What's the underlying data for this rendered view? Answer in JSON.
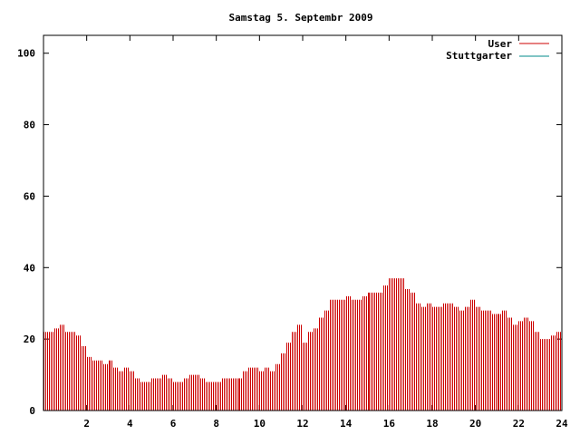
{
  "chart_data": {
    "type": "bar",
    "title": "Samstag 5. Septembr 2009",
    "xlim": [
      0,
      24
    ],
    "ylim": [
      0,
      105
    ],
    "x_ticks": [
      2,
      4,
      6,
      8,
      10,
      12,
      14,
      16,
      18,
      20,
      22,
      24
    ],
    "x_tick_labels": [
      "2",
      "4",
      "6",
      "8",
      "10",
      "12",
      "14",
      "16",
      "18",
      "20",
      "22",
      "24"
    ],
    "y_ticks": [
      0,
      20,
      40,
      60,
      80,
      100
    ],
    "y_tick_labels": [
      "0",
      "20",
      "40",
      "60",
      "80",
      "100"
    ],
    "grid": false,
    "legend_position": "top-right",
    "series": [
      {
        "name": "User",
        "color": "#cc0000",
        "points": [
          {
            "x": 0.0,
            "y": 22
          },
          {
            "x": 0.25,
            "y": 22
          },
          {
            "x": 0.5,
            "y": 23
          },
          {
            "x": 0.75,
            "y": 24
          },
          {
            "x": 1.0,
            "y": 22
          },
          {
            "x": 1.25,
            "y": 22
          },
          {
            "x": 1.5,
            "y": 21
          },
          {
            "x": 1.75,
            "y": 18
          },
          {
            "x": 2.0,
            "y": 15
          },
          {
            "x": 2.25,
            "y": 14
          },
          {
            "x": 2.5,
            "y": 14
          },
          {
            "x": 2.75,
            "y": 13
          },
          {
            "x": 3.0,
            "y": 14
          },
          {
            "x": 3.25,
            "y": 12
          },
          {
            "x": 3.5,
            "y": 11
          },
          {
            "x": 3.75,
            "y": 12
          },
          {
            "x": 4.0,
            "y": 11
          },
          {
            "x": 4.25,
            "y": 9
          },
          {
            "x": 4.5,
            "y": 8
          },
          {
            "x": 4.75,
            "y": 8
          },
          {
            "x": 5.0,
            "y": 9
          },
          {
            "x": 5.25,
            "y": 9
          },
          {
            "x": 5.5,
            "y": 10
          },
          {
            "x": 5.75,
            "y": 9
          },
          {
            "x": 6.0,
            "y": 8
          },
          {
            "x": 6.25,
            "y": 8
          },
          {
            "x": 6.5,
            "y": 9
          },
          {
            "x": 6.75,
            "y": 10
          },
          {
            "x": 7.0,
            "y": 10
          },
          {
            "x": 7.25,
            "y": 9
          },
          {
            "x": 7.5,
            "y": 8
          },
          {
            "x": 7.75,
            "y": 8
          },
          {
            "x": 8.0,
            "y": 8
          },
          {
            "x": 8.25,
            "y": 9
          },
          {
            "x": 8.5,
            "y": 9
          },
          {
            "x": 8.75,
            "y": 9
          },
          {
            "x": 9.0,
            "y": 9
          },
          {
            "x": 9.25,
            "y": 11
          },
          {
            "x": 9.5,
            "y": 12
          },
          {
            "x": 9.75,
            "y": 12
          },
          {
            "x": 10.0,
            "y": 11
          },
          {
            "x": 10.25,
            "y": 12
          },
          {
            "x": 10.5,
            "y": 11
          },
          {
            "x": 10.75,
            "y": 13
          },
          {
            "x": 11.0,
            "y": 16
          },
          {
            "x": 11.25,
            "y": 19
          },
          {
            "x": 11.5,
            "y": 22
          },
          {
            "x": 11.75,
            "y": 24
          },
          {
            "x": 12.0,
            "y": 19
          },
          {
            "x": 12.25,
            "y": 22
          },
          {
            "x": 12.5,
            "y": 23
          },
          {
            "x": 12.75,
            "y": 26
          },
          {
            "x": 13.0,
            "y": 28
          },
          {
            "x": 13.25,
            "y": 31
          },
          {
            "x": 13.5,
            "y": 31
          },
          {
            "x": 13.75,
            "y": 31
          },
          {
            "x": 14.0,
            "y": 32
          },
          {
            "x": 14.25,
            "y": 31
          },
          {
            "x": 14.5,
            "y": 31
          },
          {
            "x": 14.75,
            "y": 32
          },
          {
            "x": 15.0,
            "y": 33
          },
          {
            "x": 15.25,
            "y": 33
          },
          {
            "x": 15.5,
            "y": 33
          },
          {
            "x": 15.75,
            "y": 35
          },
          {
            "x": 16.0,
            "y": 37
          },
          {
            "x": 16.25,
            "y": 37
          },
          {
            "x": 16.5,
            "y": 37
          },
          {
            "x": 16.75,
            "y": 34
          },
          {
            "x": 17.0,
            "y": 33
          },
          {
            "x": 17.25,
            "y": 30
          },
          {
            "x": 17.5,
            "y": 29
          },
          {
            "x": 17.75,
            "y": 30
          },
          {
            "x": 18.0,
            "y": 29
          },
          {
            "x": 18.25,
            "y": 29
          },
          {
            "x": 18.5,
            "y": 30
          },
          {
            "x": 18.75,
            "y": 30
          },
          {
            "x": 19.0,
            "y": 29
          },
          {
            "x": 19.25,
            "y": 28
          },
          {
            "x": 19.5,
            "y": 29
          },
          {
            "x": 19.75,
            "y": 31
          },
          {
            "x": 20.0,
            "y": 29
          },
          {
            "x": 20.25,
            "y": 28
          },
          {
            "x": 20.5,
            "y": 28
          },
          {
            "x": 20.75,
            "y": 27
          },
          {
            "x": 21.0,
            "y": 27
          },
          {
            "x": 21.25,
            "y": 28
          },
          {
            "x": 21.5,
            "y": 26
          },
          {
            "x": 21.75,
            "y": 24
          },
          {
            "x": 22.0,
            "y": 25
          },
          {
            "x": 22.25,
            "y": 26
          },
          {
            "x": 22.5,
            "y": 25
          },
          {
            "x": 22.75,
            "y": 22
          },
          {
            "x": 23.0,
            "y": 20
          },
          {
            "x": 23.25,
            "y": 20
          },
          {
            "x": 23.5,
            "y": 21
          },
          {
            "x": 23.75,
            "y": 22
          }
        ]
      },
      {
        "name": "Stuttgarter",
        "color": "#008b8b",
        "points": []
      }
    ]
  }
}
